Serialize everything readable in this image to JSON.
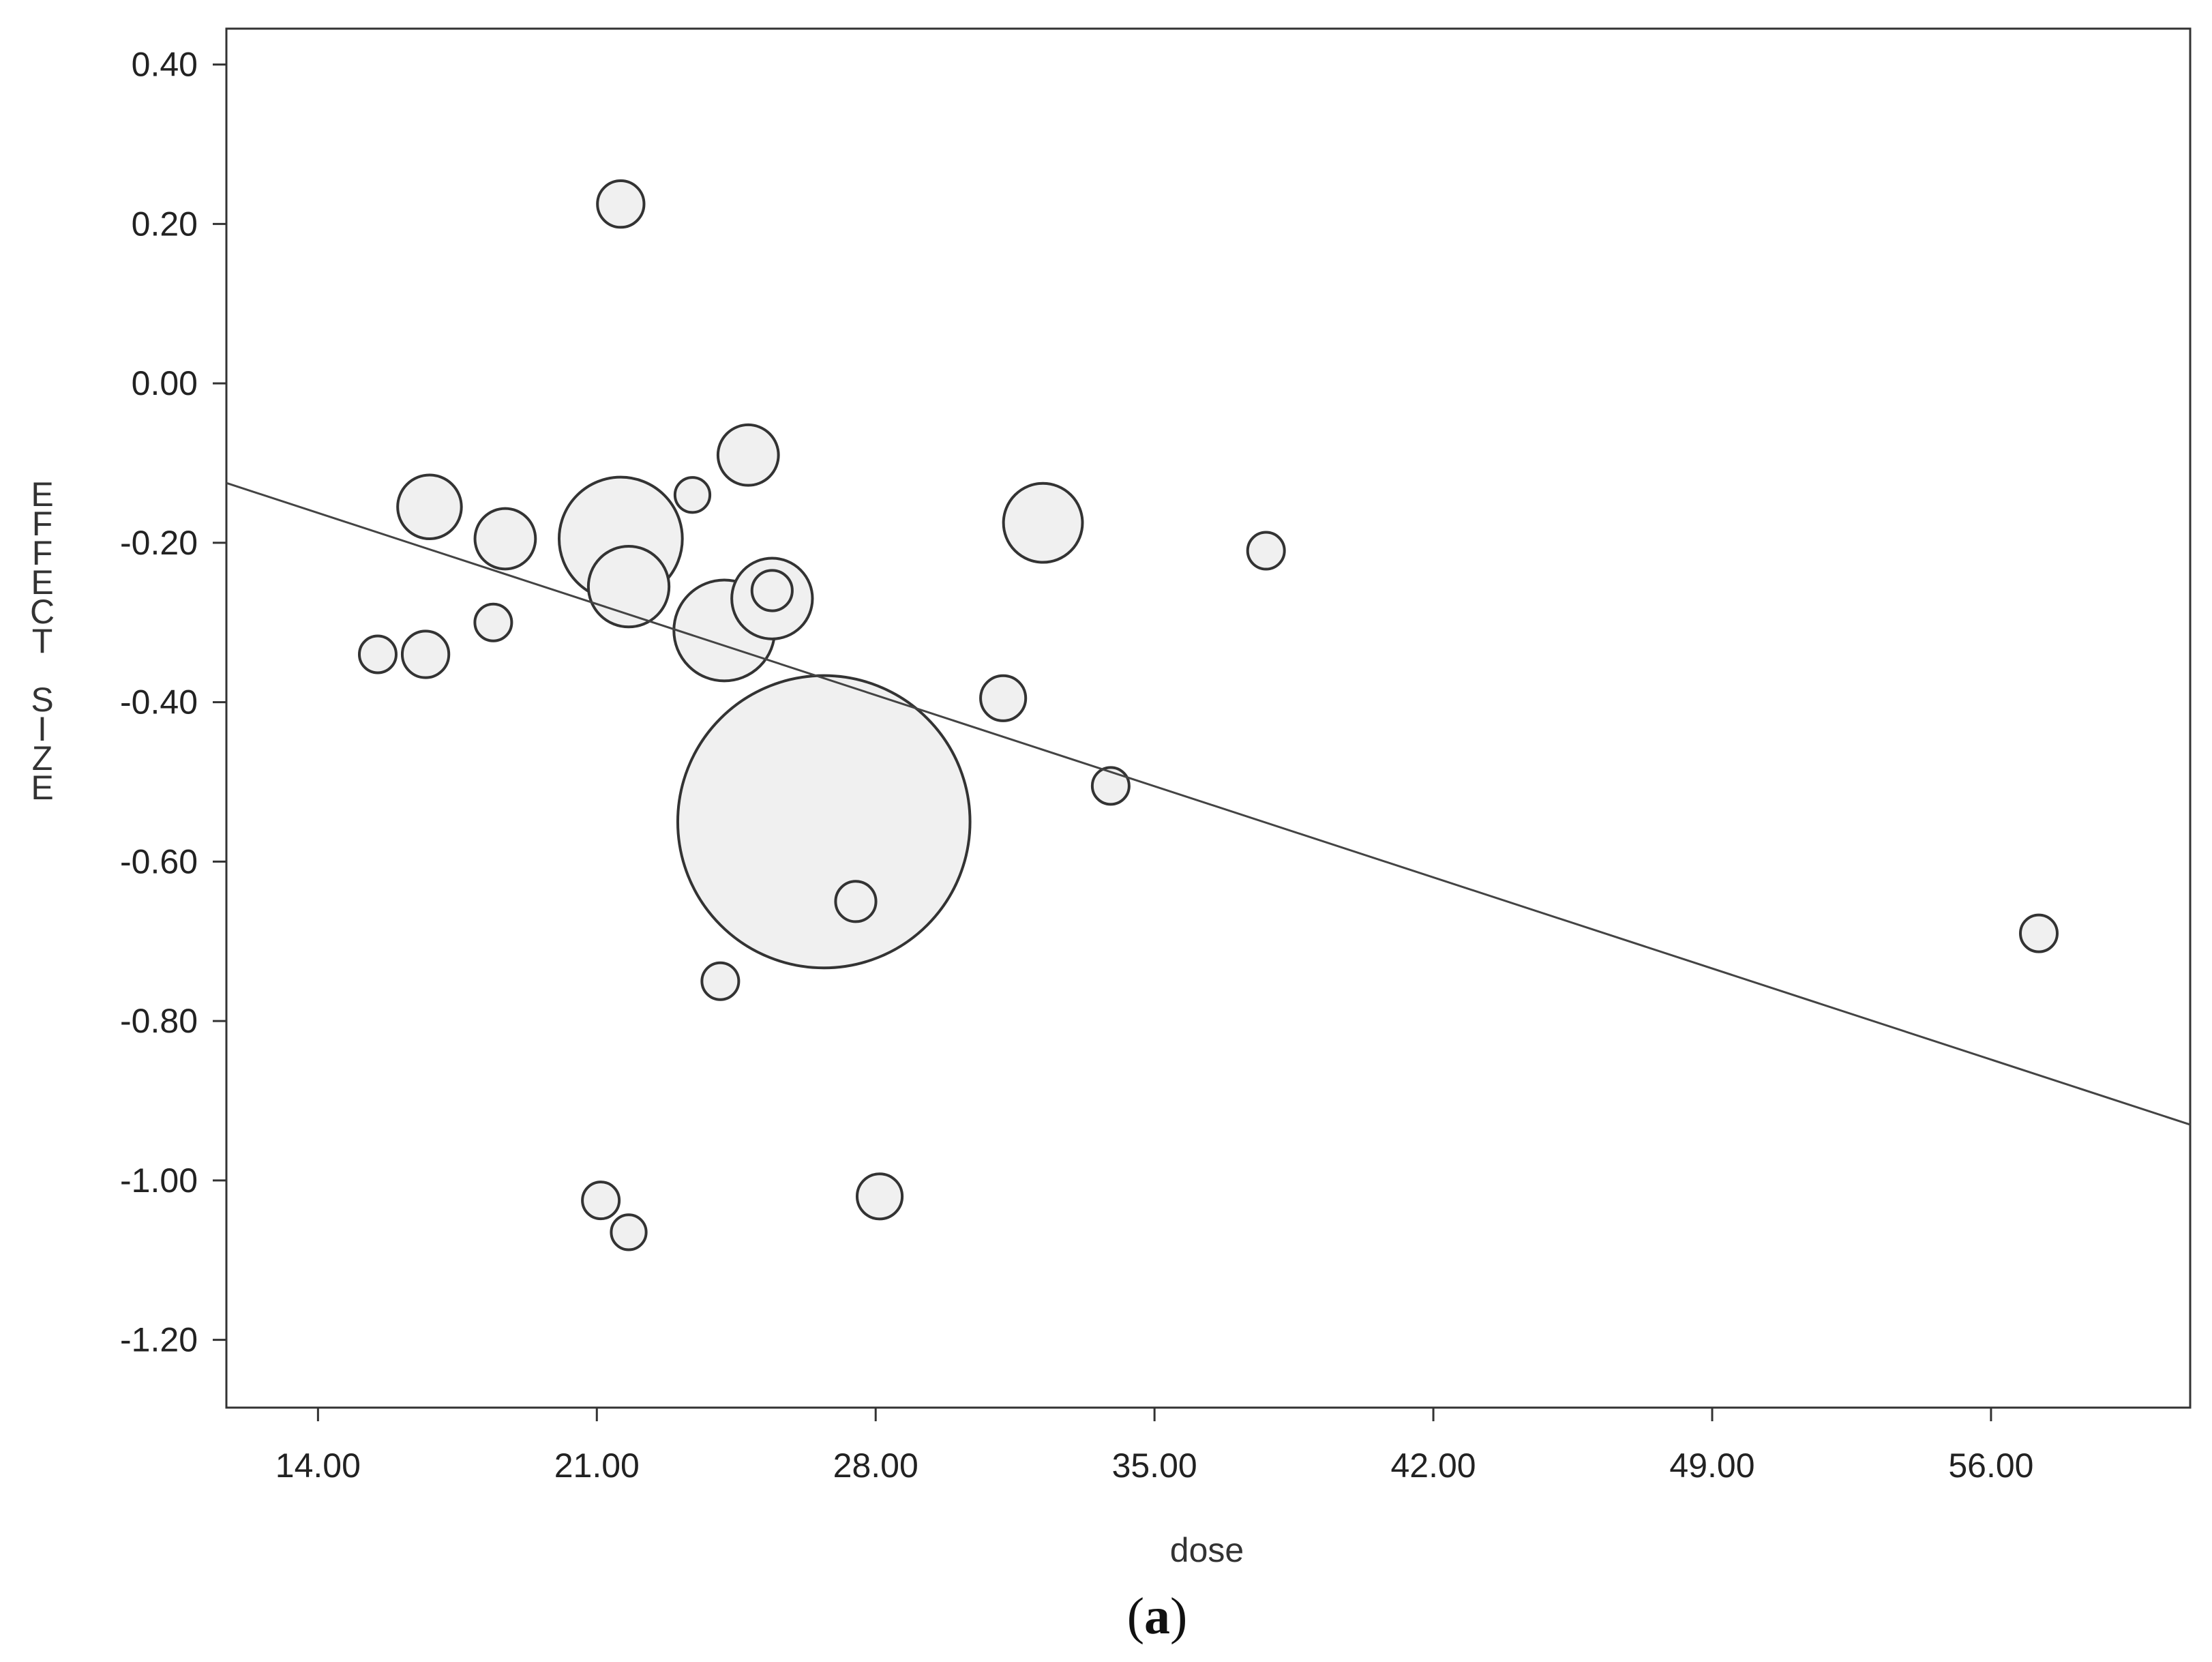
{
  "caption": {
    "open": "(",
    "letter": "a",
    "close": ")"
  },
  "chart_data": {
    "type": "scatter",
    "subtype": "bubble meta-regression",
    "xlabel": "dose",
    "ylabel": "EFFECT SIZE",
    "xlim": [
      11.7,
      61.0
    ],
    "ylim": [
      -1.285,
      0.445
    ],
    "xticks": [
      14,
      21,
      28,
      35,
      42,
      49,
      56
    ],
    "xtick_labels": [
      "14.00",
      "21.00",
      "28.00",
      "35.00",
      "42.00",
      "49.00",
      "56.00"
    ],
    "yticks": [
      0.4,
      0.2,
      0.0,
      -0.2,
      -0.4,
      -0.6,
      -0.8,
      -1.0,
      -1.2
    ],
    "ytick_labels": [
      "0.40",
      "0.20",
      "0.00",
      "-0.20",
      "-0.40",
      "-0.60",
      "-0.80",
      "-1.00",
      "-1.20"
    ],
    "grid": false,
    "regression_line": {
      "x": [
        11.7,
        61.0
      ],
      "y": [
        -0.125,
        -0.93
      ]
    },
    "points": [
      {
        "x": 15.5,
        "y": -0.34,
        "weight": 1.0
      },
      {
        "x": 16.8,
        "y": -0.155,
        "weight": 3.0
      },
      {
        "x": 16.7,
        "y": -0.34,
        "weight": 1.6
      },
      {
        "x": 18.4,
        "y": -0.3,
        "weight": 1.0
      },
      {
        "x": 18.7,
        "y": -0.195,
        "weight": 2.7
      },
      {
        "x": 21.1,
        "y": -1.025,
        "weight": 1.0
      },
      {
        "x": 21.6,
        "y": 0.225,
        "weight": 1.6
      },
      {
        "x": 21.6,
        "y": -0.195,
        "weight": 11.2
      },
      {
        "x": 21.8,
        "y": -0.255,
        "weight": 4.8
      },
      {
        "x": 21.8,
        "y": -1.065,
        "weight": 0.9
      },
      {
        "x": 23.4,
        "y": -0.14,
        "weight": 0.9
      },
      {
        "x": 24.1,
        "y": -0.75,
        "weight": 1.0
      },
      {
        "x": 24.2,
        "y": -0.31,
        "weight": 7.5
      },
      {
        "x": 24.8,
        "y": -0.09,
        "weight": 2.7
      },
      {
        "x": 25.4,
        "y": -0.27,
        "weight": 4.8
      },
      {
        "x": 25.4,
        "y": -0.26,
        "weight": 1.2
      },
      {
        "x": 26.7,
        "y": -0.55,
        "weight": 63.0
      },
      {
        "x": 27.5,
        "y": -0.65,
        "weight": 1.2
      },
      {
        "x": 28.1,
        "y": -1.02,
        "weight": 1.5
      },
      {
        "x": 31.2,
        "y": -0.395,
        "weight": 1.5
      },
      {
        "x": 32.2,
        "y": -0.175,
        "weight": 4.6
      },
      {
        "x": 33.9,
        "y": -0.505,
        "weight": 1.0
      },
      {
        "x": 37.8,
        "y": -0.21,
        "weight": 1.0
      },
      {
        "x": 57.2,
        "y": -0.69,
        "weight": 1.0
      }
    ],
    "bubble_fill": "#f0f0f0",
    "bubble_stroke": "#333333",
    "line_color": "#444444"
  }
}
